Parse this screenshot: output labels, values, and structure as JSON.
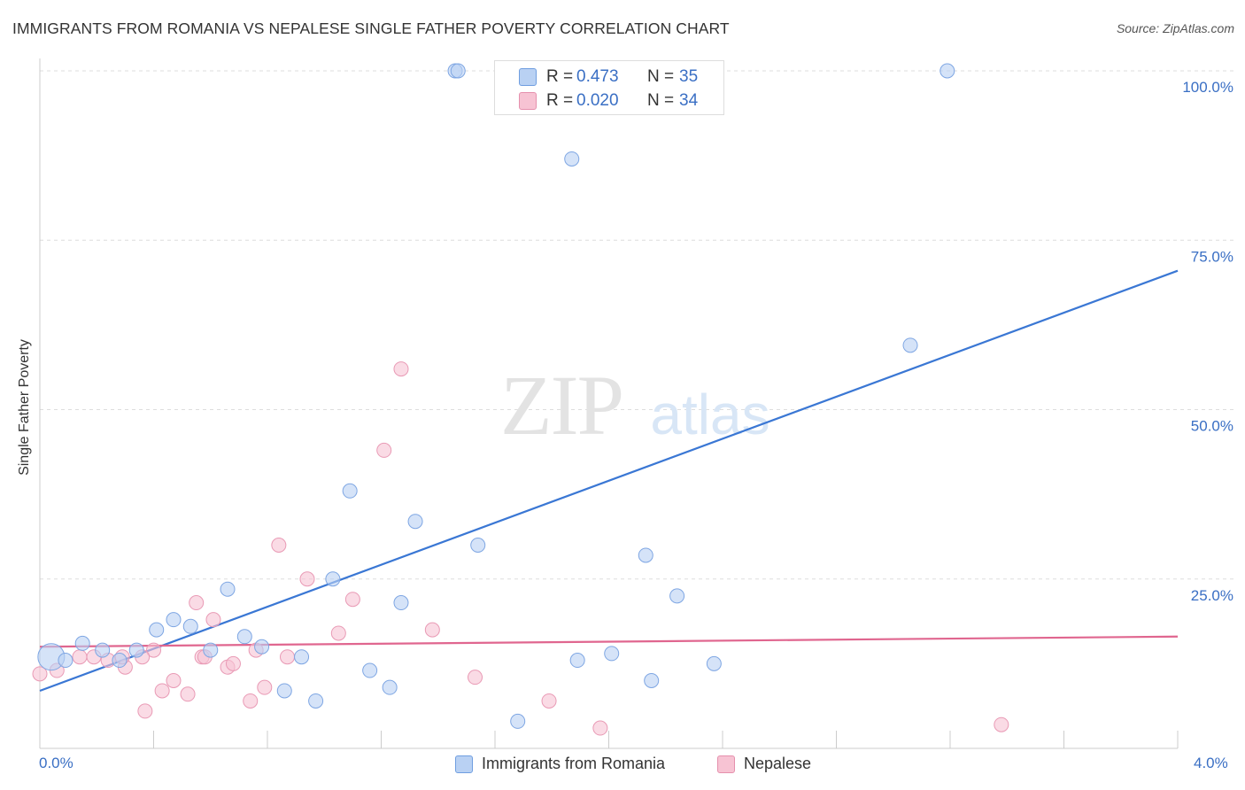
{
  "title": "IMMIGRANTS FROM ROMANIA VS NEPALESE SINGLE FATHER POVERTY CORRELATION CHART",
  "source": "Source: ZipAtlas.com",
  "watermark": {
    "zip": "ZIP",
    "atlas": "atlas"
  },
  "colors": {
    "blue": "#3a77d4",
    "blue_fill": "#b9d1f3",
    "pink": "#e0668f",
    "pink_fill": "#f7c3d3",
    "tick_text": "#3a6fc4",
    "grid": "#dddddd"
  },
  "stats": [
    {
      "r_label": "R =",
      "r": "0.473",
      "n_label": "N =",
      "n": "35"
    },
    {
      "r_label": "R =",
      "r": "0.020",
      "n_label": "N =",
      "n": "34"
    }
  ],
  "chart_data": {
    "type": "scatter",
    "title": "IMMIGRANTS FROM ROMANIA VS NEPALESE SINGLE FATHER POVERTY CORRELATION CHART",
    "xlabel": "",
    "ylabel": "Single Father Poverty",
    "xlim": [
      0,
      4.0
    ],
    "ylim": [
      0,
      100
    ],
    "x_tick_labels": [
      "0.0%",
      "4.0%"
    ],
    "y_tick_labels": [
      "100.0%",
      "75.0%",
      "50.0%",
      "25.0%"
    ],
    "y_ticks": [
      100,
      75,
      50,
      25
    ],
    "grid": true,
    "legend_position": "bottom",
    "series": [
      {
        "name": "Immigrants from Romania",
        "color": "blue",
        "points": [
          [
            0.04,
            13.5
          ],
          [
            0.09,
            13.0
          ],
          [
            0.15,
            15.5
          ],
          [
            0.22,
            14.5
          ],
          [
            0.28,
            13.0
          ],
          [
            0.34,
            14.5
          ],
          [
            0.41,
            17.5
          ],
          [
            0.47,
            19.0
          ],
          [
            0.53,
            18.0
          ],
          [
            0.6,
            14.5
          ],
          [
            0.66,
            23.5
          ],
          [
            0.72,
            16.5
          ],
          [
            0.78,
            15.0
          ],
          [
            0.86,
            8.5
          ],
          [
            0.92,
            13.5
          ],
          [
            0.97,
            7.0
          ],
          [
            1.03,
            25.0
          ],
          [
            1.09,
            38.0
          ],
          [
            1.16,
            11.5
          ],
          [
            1.23,
            9.0
          ],
          [
            1.27,
            21.5
          ],
          [
            1.32,
            33.5
          ],
          [
            1.46,
            100.0
          ],
          [
            1.54,
            30.0
          ],
          [
            1.68,
            4.0
          ],
          [
            1.87,
            87.0
          ],
          [
            1.89,
            13.0
          ],
          [
            2.01,
            14.0
          ],
          [
            2.13,
            28.5
          ],
          [
            2.15,
            10.0
          ],
          [
            2.24,
            22.5
          ],
          [
            2.37,
            12.5
          ],
          [
            3.06,
            59.5
          ],
          [
            3.19,
            100.0
          ],
          [
            1.47,
            100.0
          ]
        ],
        "trend": [
          [
            0.0,
            8.5
          ],
          [
            4.0,
            70.5
          ]
        ]
      },
      {
        "name": "Nepalese",
        "color": "pink",
        "points": [
          [
            0.0,
            11.0
          ],
          [
            0.06,
            11.5
          ],
          [
            0.14,
            13.5
          ],
          [
            0.19,
            13.5
          ],
          [
            0.24,
            13.0
          ],
          [
            0.3,
            12.0
          ],
          [
            0.37,
            5.5
          ],
          [
            0.4,
            14.5
          ],
          [
            0.43,
            8.5
          ],
          [
            0.47,
            10.0
          ],
          [
            0.52,
            8.0
          ],
          [
            0.55,
            21.5
          ],
          [
            0.57,
            13.5
          ],
          [
            0.61,
            19.0
          ],
          [
            0.66,
            12.0
          ],
          [
            0.68,
            12.5
          ],
          [
            0.74,
            7.0
          ],
          [
            0.76,
            14.5
          ],
          [
            0.79,
            9.0
          ],
          [
            0.84,
            30.0
          ],
          [
            0.87,
            13.5
          ],
          [
            0.94,
            25.0
          ],
          [
            1.05,
            17.0
          ],
          [
            1.1,
            22.0
          ],
          [
            1.21,
            44.0
          ],
          [
            1.27,
            56.0
          ],
          [
            1.38,
            17.5
          ],
          [
            1.53,
            10.5
          ],
          [
            1.79,
            7.0
          ],
          [
            1.97,
            3.0
          ],
          [
            3.38,
            3.5
          ],
          [
            0.29,
            13.5
          ],
          [
            0.36,
            13.5
          ],
          [
            0.58,
            13.5
          ]
        ],
        "trend": [
          [
            0.0,
            15.0
          ],
          [
            4.0,
            16.5
          ]
        ]
      }
    ]
  }
}
